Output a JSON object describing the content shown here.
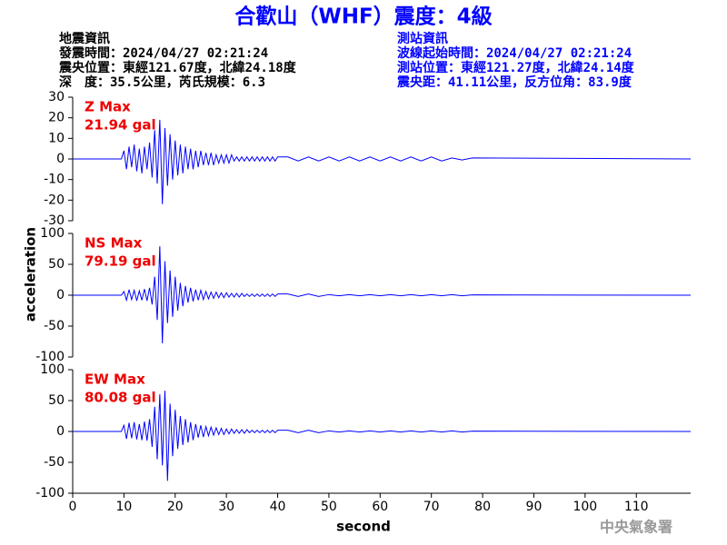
{
  "header": {
    "title": "合歡山（WHF）震度：4級",
    "left": [
      "地震資訊",
      "發震時間：2024/04/27 02:21:24",
      "震央位置：東經121.67度，北緯24.18度",
      "深　度：35.5公里，芮氏規模：6.3"
    ],
    "right": [
      "測站資訊",
      "波線起始時間：2024/04/27 02:21:24",
      "測站位置：東經121.27度，北緯24.14度",
      "震央距：41.11公里，反方位角：83.9度"
    ]
  },
  "ylabel": "acceleration",
  "watermark": "中央氣象署",
  "chart_data": [
    {
      "type": "line",
      "max_name": "Z Max",
      "max_text": "21.94 gal",
      "ylim": [
        -30,
        30
      ],
      "yticks": [
        30,
        20,
        10,
        0,
        -10,
        -20,
        -30
      ],
      "x": [
        0,
        9.5,
        10,
        10.5,
        11,
        11.5,
        12,
        12.5,
        13,
        13.5,
        14,
        14.5,
        15,
        15.5,
        16,
        16.5,
        17,
        17.5,
        18,
        18.5,
        19,
        19.5,
        20,
        20.5,
        21,
        21.5,
        22,
        22.5,
        23,
        23.5,
        24,
        24.5,
        25,
        25.5,
        26,
        26.5,
        27,
        27.5,
        28,
        28.5,
        29,
        29.5,
        30,
        30.5,
        31,
        31.5,
        32,
        32.5,
        33,
        33.5,
        34,
        34.5,
        35,
        35.5,
        36,
        36.5,
        37,
        37.5,
        38,
        38.5,
        39,
        39.5,
        40,
        42,
        44,
        46,
        48,
        50,
        52,
        54,
        56,
        58,
        60,
        62,
        64,
        66,
        68,
        70,
        72,
        74,
        76,
        78,
        120.6
      ],
      "series": [
        {
          "color": "#0000ff",
          "values": [
            0,
            0,
            4,
            -5,
            6,
            -4,
            7,
            -6,
            5,
            -7,
            6,
            -5,
            8,
            -9,
            14,
            -12,
            19,
            -21.94,
            15,
            -13,
            12,
            -10,
            9,
            -8,
            7,
            -7,
            6,
            -5,
            5,
            -5,
            4,
            -4,
            4,
            -3,
            3,
            -3,
            3,
            -3,
            2,
            -2,
            2,
            -2,
            2,
            -2,
            2,
            -1,
            1,
            -1,
            1,
            -1,
            1,
            -1,
            1,
            -1,
            1,
            -1,
            1,
            -1,
            1,
            -1,
            1,
            -1,
            1,
            1,
            -1,
            1,
            -1,
            1,
            -1,
            1,
            -1,
            1,
            -1,
            1,
            -1,
            1,
            -1,
            1,
            -1,
            0.5,
            -0.5,
            0.5,
            0
          ]
        }
      ]
    },
    {
      "type": "line",
      "max_name": "NS Max",
      "max_text": "79.19 gal",
      "ylim": [
        -100,
        100
      ],
      "yticks": [
        100,
        50,
        0,
        -50,
        -100
      ],
      "x": [
        0,
        9.5,
        10,
        10.5,
        11,
        11.5,
        12,
        12.5,
        13,
        13.5,
        14,
        14.5,
        15,
        15.5,
        16,
        16.5,
        17,
        17.5,
        18,
        18.5,
        19,
        19.5,
        20,
        20.5,
        21,
        21.5,
        22,
        22.5,
        23,
        23.5,
        24,
        24.5,
        25,
        25.5,
        26,
        26.5,
        27,
        27.5,
        28,
        28.5,
        29,
        29.5,
        30,
        30.5,
        31,
        31.5,
        32,
        32.5,
        33,
        33.5,
        34,
        34.5,
        35,
        35.5,
        36,
        36.5,
        37,
        37.5,
        38,
        38.5,
        39,
        39.5,
        40,
        42,
        44,
        46,
        48,
        50,
        52,
        54,
        56,
        58,
        60,
        62,
        64,
        66,
        68,
        70,
        72,
        74,
        76,
        78,
        120.6
      ],
      "series": [
        {
          "color": "#0000ff",
          "values": [
            0,
            0,
            6,
            -8,
            9,
            -7,
            8,
            -9,
            7,
            -8,
            10,
            -9,
            12,
            -15,
            30,
            -40,
            79.19,
            -78,
            55,
            -45,
            40,
            -35,
            30,
            -25,
            20,
            -18,
            15,
            -12,
            12,
            -10,
            9,
            -8,
            8,
            -7,
            6,
            -6,
            5,
            -5,
            5,
            -4,
            4,
            -4,
            4,
            -3,
            3,
            -3,
            3,
            -3,
            3,
            -2,
            2,
            -2,
            2,
            -2,
            2,
            -2,
            2,
            -2,
            2,
            -2,
            2,
            -2,
            2,
            2,
            -2,
            2,
            -2,
            1,
            -1,
            1,
            -1,
            1,
            -1,
            1,
            -1,
            1,
            -1,
            1,
            -1,
            1,
            -1,
            0.5,
            0
          ]
        }
      ]
    },
    {
      "type": "line",
      "max_name": "EW Max",
      "max_text": "80.08 gal",
      "ylim": [
        -100,
        100
      ],
      "yticks": [
        100,
        50,
        0,
        -50,
        -100
      ],
      "xlim": [
        0,
        120.6
      ],
      "xticks": [
        0,
        10,
        20,
        30,
        40,
        50,
        60,
        70,
        80,
        90,
        100,
        110
      ],
      "xlabel": "second",
      "x": [
        0,
        9.5,
        10,
        10.5,
        11,
        11.5,
        12,
        12.5,
        13,
        13.5,
        14,
        14.5,
        15,
        15.5,
        16,
        16.5,
        17,
        17.5,
        18,
        18.5,
        19,
        19.5,
        20,
        20.5,
        21,
        21.5,
        22,
        22.5,
        23,
        23.5,
        24,
        24.5,
        25,
        25.5,
        26,
        26.5,
        27,
        27.5,
        28,
        28.5,
        29,
        29.5,
        30,
        30.5,
        31,
        31.5,
        32,
        32.5,
        33,
        33.5,
        34,
        34.5,
        35,
        35.5,
        36,
        36.5,
        37,
        37.5,
        38,
        38.5,
        39,
        39.5,
        40,
        42,
        44,
        46,
        48,
        50,
        52,
        54,
        56,
        58,
        60,
        62,
        64,
        66,
        68,
        70,
        72,
        74,
        76,
        78,
        120.6
      ],
      "series": [
        {
          "color": "#0000ff",
          "values": [
            0,
            0,
            10,
            -12,
            14,
            -11,
            15,
            -13,
            12,
            -14,
            16,
            -15,
            20,
            -25,
            40,
            -45,
            60,
            -55,
            66,
            -80.08,
            45,
            -40,
            35,
            -28,
            25,
            -22,
            20,
            -18,
            15,
            -14,
            12,
            -10,
            10,
            -9,
            8,
            -7,
            7,
            -6,
            6,
            -5,
            5,
            -5,
            4,
            -4,
            4,
            -3,
            3,
            -3,
            3,
            -3,
            3,
            -2,
            2,
            -2,
            2,
            -2,
            2,
            -2,
            2,
            -2,
            2,
            -2,
            2,
            2,
            -2,
            2,
            -2,
            1,
            -1,
            1,
            -1,
            1,
            -1,
            1,
            -1,
            1,
            -1,
            1,
            -1,
            1,
            -1,
            0.5,
            0
          ]
        }
      ]
    }
  ]
}
